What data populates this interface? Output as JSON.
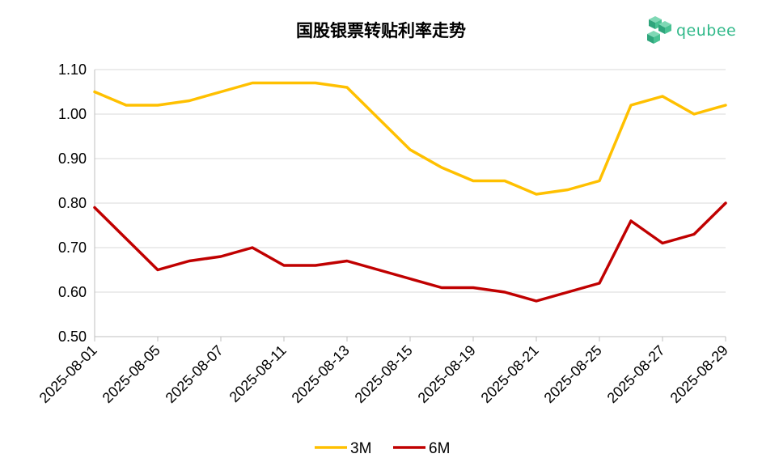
{
  "logo": {
    "text": "qeubee",
    "icon": "cube-cluster-icon",
    "color": "#31b98a"
  },
  "chart_data": {
    "type": "line",
    "title": "国股银票转贴利率走势",
    "xlabel": "",
    "ylabel": "",
    "ylim": [
      0.5,
      1.1
    ],
    "y_ticks": [
      "1.10",
      "1.00",
      "0.90",
      "0.80",
      "0.70",
      "0.60",
      "0.50"
    ],
    "x_tick_labels": [
      "2025-08-01",
      "2025-08-05",
      "2025-08-07",
      "2025-08-11",
      "2025-08-13",
      "2025-08-15",
      "2025-08-19",
      "2025-08-21",
      "2025-08-25",
      "2025-08-27",
      "2025-08-29"
    ],
    "x": [
      "2025-08-01",
      "2025-08-04",
      "2025-08-05",
      "2025-08-06",
      "2025-08-07",
      "2025-08-08",
      "2025-08-11",
      "2025-08-12",
      "2025-08-13",
      "2025-08-14",
      "2025-08-15",
      "2025-08-18",
      "2025-08-19",
      "2025-08-20",
      "2025-08-21",
      "2025-08-22",
      "2025-08-25",
      "2025-08-26",
      "2025-08-27",
      "2025-08-28",
      "2025-08-29"
    ],
    "series": [
      {
        "name": "3M",
        "color": "#ffc000",
        "values": [
          1.05,
          1.02,
          1.02,
          1.03,
          1.05,
          1.07,
          1.07,
          1.07,
          1.06,
          0.99,
          0.92,
          0.88,
          0.85,
          0.85,
          0.82,
          0.83,
          0.85,
          1.02,
          1.04,
          1.0,
          1.02
        ]
      },
      {
        "name": "6M",
        "color": "#c00000",
        "values": [
          0.79,
          0.72,
          0.65,
          0.67,
          0.68,
          0.7,
          0.66,
          0.66,
          0.67,
          0.65,
          0.63,
          0.61,
          0.61,
          0.6,
          0.58,
          0.6,
          0.62,
          0.76,
          0.71,
          0.73,
          0.8
        ]
      }
    ],
    "grid": true,
    "legend_position": "bottom"
  }
}
